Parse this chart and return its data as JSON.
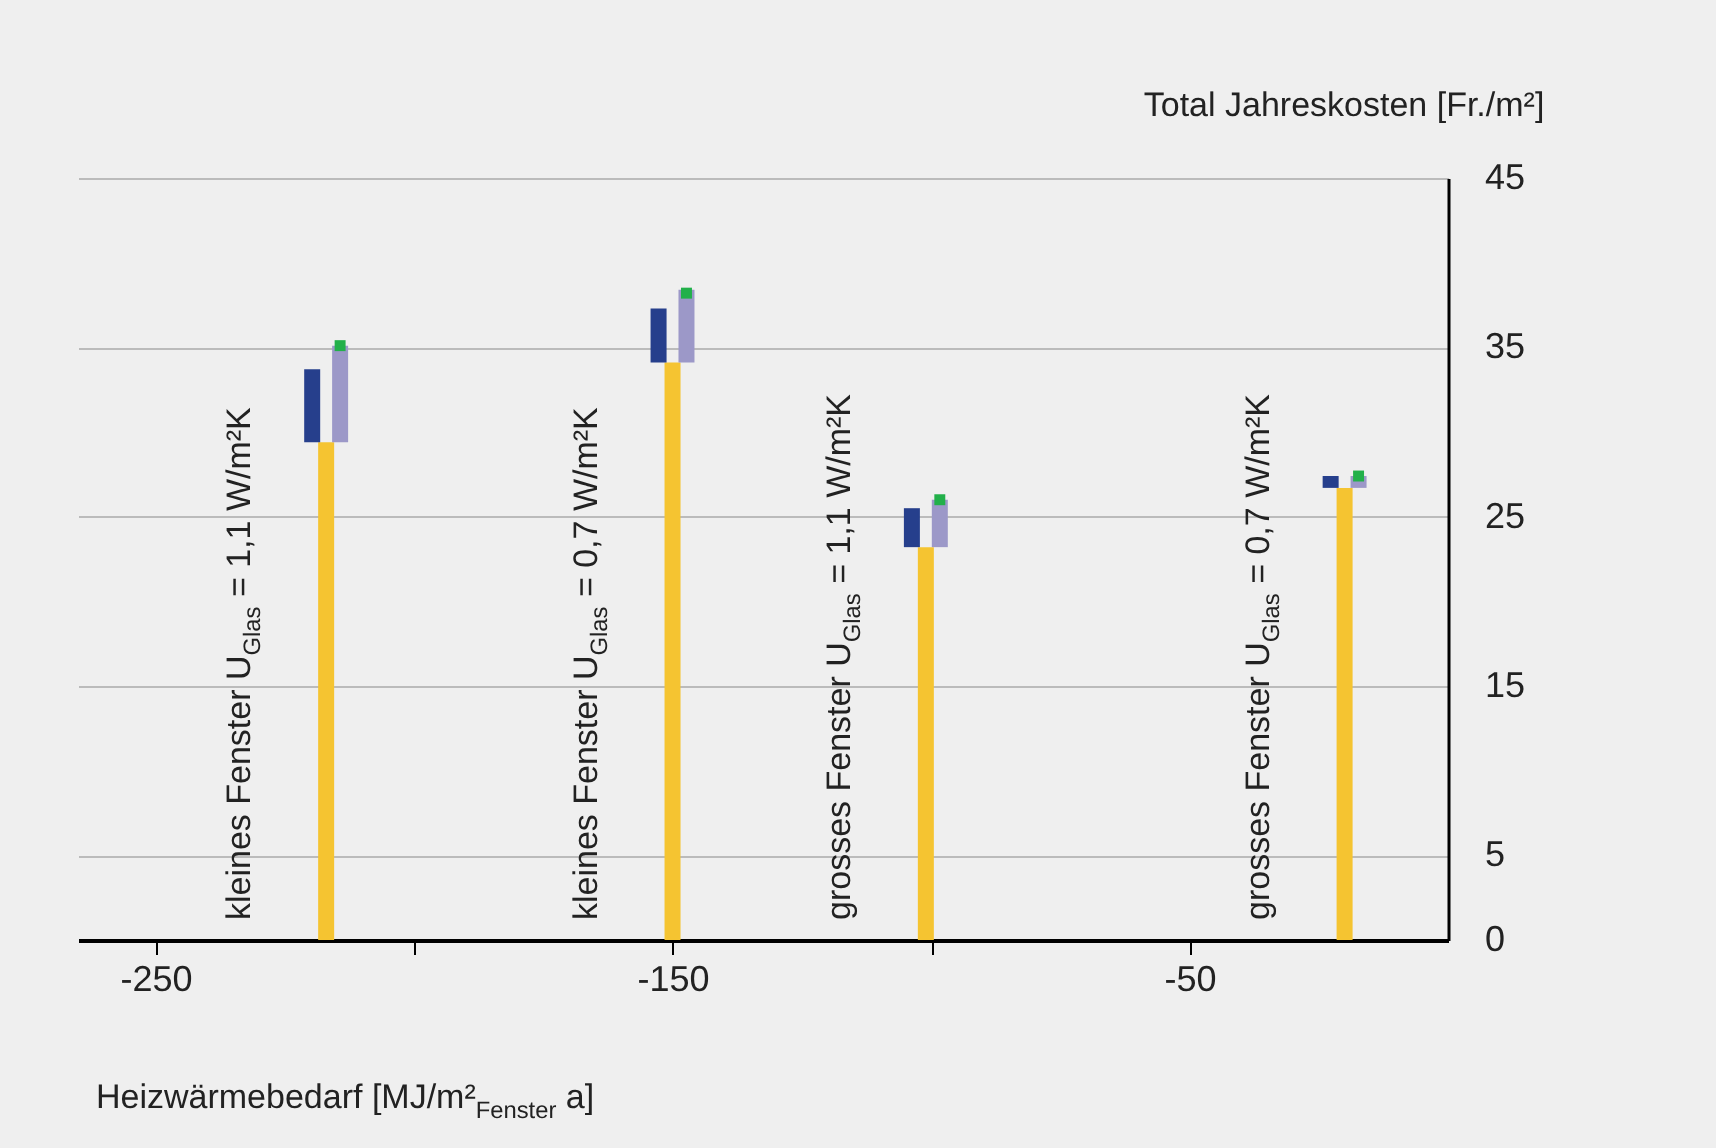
{
  "chart_data": {
    "type": "bar",
    "xlabel": "Heizwärmebedarf [MJ/m²$_{Fenster}$ a]",
    "ylabel": "Total Jahreskosten [Fr./m²]",
    "xlim": [
      -265,
      0
    ],
    "xticks": [
      -250,
      {
        "value": -200,
        "label": null
      },
      -150,
      {
        "value": -100,
        "label": null
      },
      -50
    ],
    "ylim": [
      0,
      45
    ],
    "yticks": [
      0,
      5,
      15,
      25,
      35,
      45
    ],
    "grid": "y",
    "series": [
      {
        "color": "#f5c431",
        "x": [
          -217,
          -150,
          -101,
          -20
        ],
        "values": [
          29.4,
          34.1,
          23.2,
          26.7
        ]
      },
      {
        "color": "#263f8c",
        "x": [
          -219.7,
          -152.7,
          -103.7,
          -22.7
        ],
        "base": [
          29.4,
          34.1,
          23.2,
          26.7
        ],
        "values": [
          4.3,
          3.2,
          2.3,
          0.7
        ]
      },
      {
        "color": "#9c98c8",
        "x": [
          -214.3,
          -147.3,
          -98.3,
          -17.3
        ],
        "base": [
          29.4,
          34.1,
          23.2,
          26.7
        ],
        "values": [
          5.7,
          4.3,
          2.8,
          0.7
        ]
      },
      {
        "type": "scatter",
        "color": "#22b04a",
        "x": [
          -214.3,
          -147.3,
          -98.3,
          -17.3
        ],
        "values": [
          35.1,
          38.2,
          26.0,
          27.4
        ]
      }
    ],
    "annotations": [
      "kleines Fenster U$_{Glas}$ = 1,1 W/m²K",
      "kleines Fenster U$_{Glas}$ = 0,7 W/m²K",
      "grosses Fenster U$_{Glas}$ = 1,1 W/m²K",
      "grosses Fenster U$_{Glas}$ = 0,7 W/m²K"
    ]
  }
}
